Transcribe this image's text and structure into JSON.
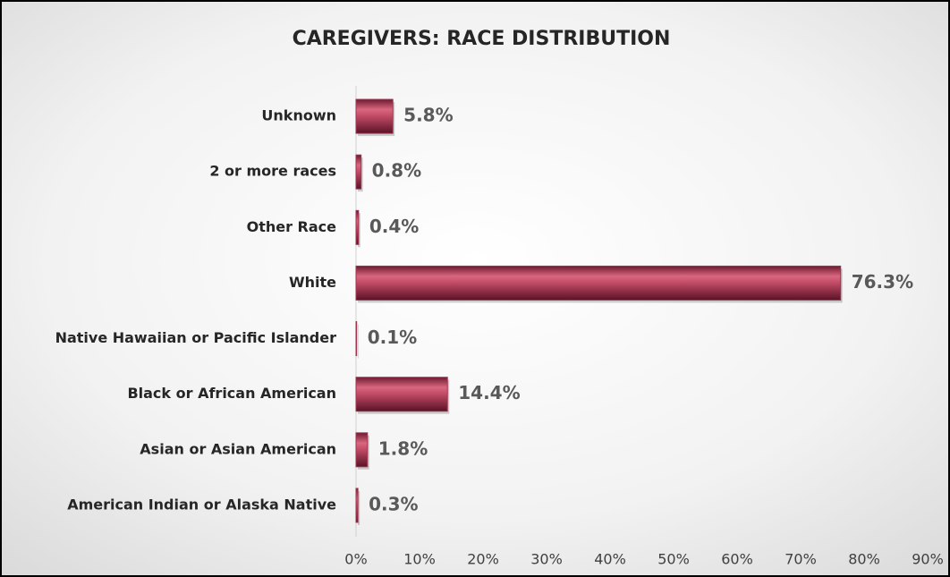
{
  "chart_data": {
    "type": "bar",
    "orientation": "horizontal",
    "title": "CAREGIVERS: RACE DISTRIBUTION",
    "categories": [
      "Unknown",
      "2 or more races",
      "Other Race",
      "White",
      "Native Hawaiian or Pacific Islander",
      "Black or African American",
      "Asian or Asian American",
      "American Indian or Alaska Native"
    ],
    "values": [
      5.8,
      0.8,
      0.4,
      76.3,
      0.1,
      14.4,
      1.8,
      0.3
    ],
    "value_labels": [
      "5.8%",
      "0.8%",
      "0.4%",
      "76.3%",
      "0.1%",
      "14.4%",
      "1.8%",
      "0.3%"
    ],
    "color": "#a3334f",
    "xlim": [
      0,
      90
    ],
    "xticks": [
      {
        "value": 0,
        "label": "0%"
      },
      {
        "value": 10,
        "label": "10%"
      },
      {
        "value": 20,
        "label": "20%"
      },
      {
        "value": 30,
        "label": "30%"
      },
      {
        "value": 40,
        "label": "40%"
      },
      {
        "value": 50,
        "label": "50%"
      },
      {
        "value": 60,
        "label": "60%"
      },
      {
        "value": 70,
        "label": "70%"
      },
      {
        "value": 80,
        "label": "80%"
      },
      {
        "value": 90,
        "label": "90%"
      }
    ],
    "grid": false
  }
}
